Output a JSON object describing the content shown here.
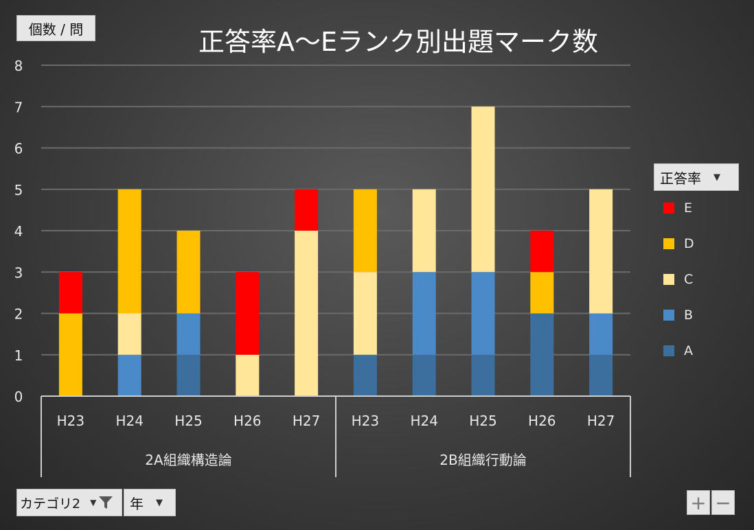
{
  "chart_data": {
    "type": "bar",
    "stacked": true,
    "title": "正答率A～Eランク別出題マーク数",
    "ylabel": "個数 / 問",
    "ylim": [
      0,
      8
    ],
    "yticks": [
      "0",
      "1",
      "2",
      "3",
      "4",
      "5",
      "6",
      "7",
      "8"
    ],
    "grid": true,
    "legend_title": "正答率",
    "legend_position": "right",
    "groups": [
      {
        "name": "2A組織構造論",
        "categories": [
          "H23",
          "H24",
          "H25",
          "H26",
          "H27"
        ]
      },
      {
        "name": "2B組織行動論",
        "categories": [
          "H23",
          "H24",
          "H25",
          "H26",
          "H27"
        ]
      }
    ],
    "categories": [
      "H23",
      "H24",
      "H25",
      "H26",
      "H27",
      "H23",
      "H24",
      "H25",
      "H26",
      "H27"
    ],
    "series": [
      {
        "name": "A",
        "color": "#3d6f9e",
        "values": [
          0,
          0,
          1,
          0,
          0,
          1,
          1,
          1,
          2,
          1
        ]
      },
      {
        "name": "B",
        "color": "#4a8ac8",
        "values": [
          0,
          1,
          1,
          0,
          0,
          0,
          2,
          2,
          0,
          1
        ]
      },
      {
        "name": "C",
        "color": "#ffe699",
        "values": [
          0,
          1,
          0,
          1,
          4,
          2,
          2,
          4,
          0,
          3
        ]
      },
      {
        "name": "D",
        "color": "#ffc000",
        "values": [
          2,
          3,
          2,
          0,
          0,
          2,
          0,
          0,
          1,
          0
        ]
      },
      {
        "name": "E",
        "color": "#ff0000",
        "values": [
          1,
          0,
          0,
          2,
          1,
          0,
          0,
          0,
          1,
          0
        ]
      }
    ]
  },
  "legend": {
    "title": "正答率",
    "items": [
      {
        "label": "E",
        "color": "#ff0000"
      },
      {
        "label": "D",
        "color": "#ffc000"
      },
      {
        "label": "C",
        "color": "#ffe699"
      },
      {
        "label": "B",
        "color": "#4a8ac8"
      },
      {
        "label": "A",
        "color": "#3d6f9e"
      }
    ]
  },
  "filters": {
    "category_label": "カテゴリ2",
    "year_label": "年"
  },
  "zoom": {
    "plus": "+",
    "minus": "−"
  }
}
